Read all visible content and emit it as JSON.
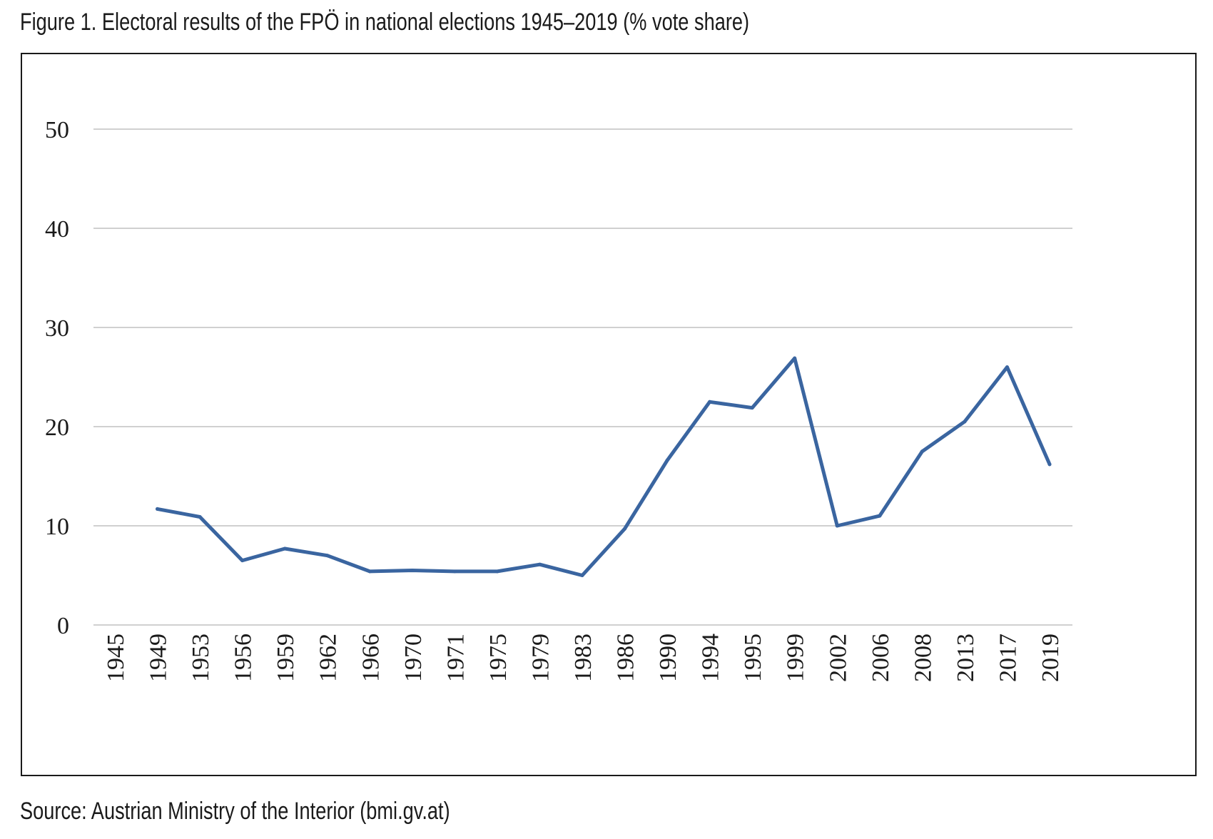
{
  "figure": {
    "caption": "Figure 1. Electoral results of the FPÖ in national elections 1945–2019 (% vote share)",
    "source": "Source: Austrian Ministry of the Interior (bmi.gv.at)"
  },
  "colors": {
    "line": "#3a65a0",
    "grid": "#d0d0d0",
    "text": "#1a1a1a"
  },
  "chart_data": {
    "type": "line",
    "title": "",
    "xlabel": "",
    "ylabel": "",
    "categories": [
      "1945",
      "1949",
      "1953",
      "1956",
      "1959",
      "1962",
      "1966",
      "1970",
      "1971",
      "1975",
      "1979",
      "1983",
      "1986",
      "1990",
      "1994",
      "1995",
      "1999",
      "2002",
      "2006",
      "2008",
      "2013",
      "2017",
      "2019"
    ],
    "series": [
      {
        "values": [
          null,
          11.7,
          10.9,
          6.5,
          7.7,
          7.0,
          5.4,
          5.5,
          5.4,
          5.4,
          6.1,
          5.0,
          9.7,
          16.6,
          22.5,
          21.9,
          26.9,
          10.0,
          11.0,
          17.5,
          20.5,
          26.0,
          16.2
        ]
      }
    ],
    "ylim": [
      0,
      50
    ],
    "yticks": [
      0,
      10,
      20,
      30,
      40,
      50
    ],
    "grid": true,
    "legend": "none"
  }
}
